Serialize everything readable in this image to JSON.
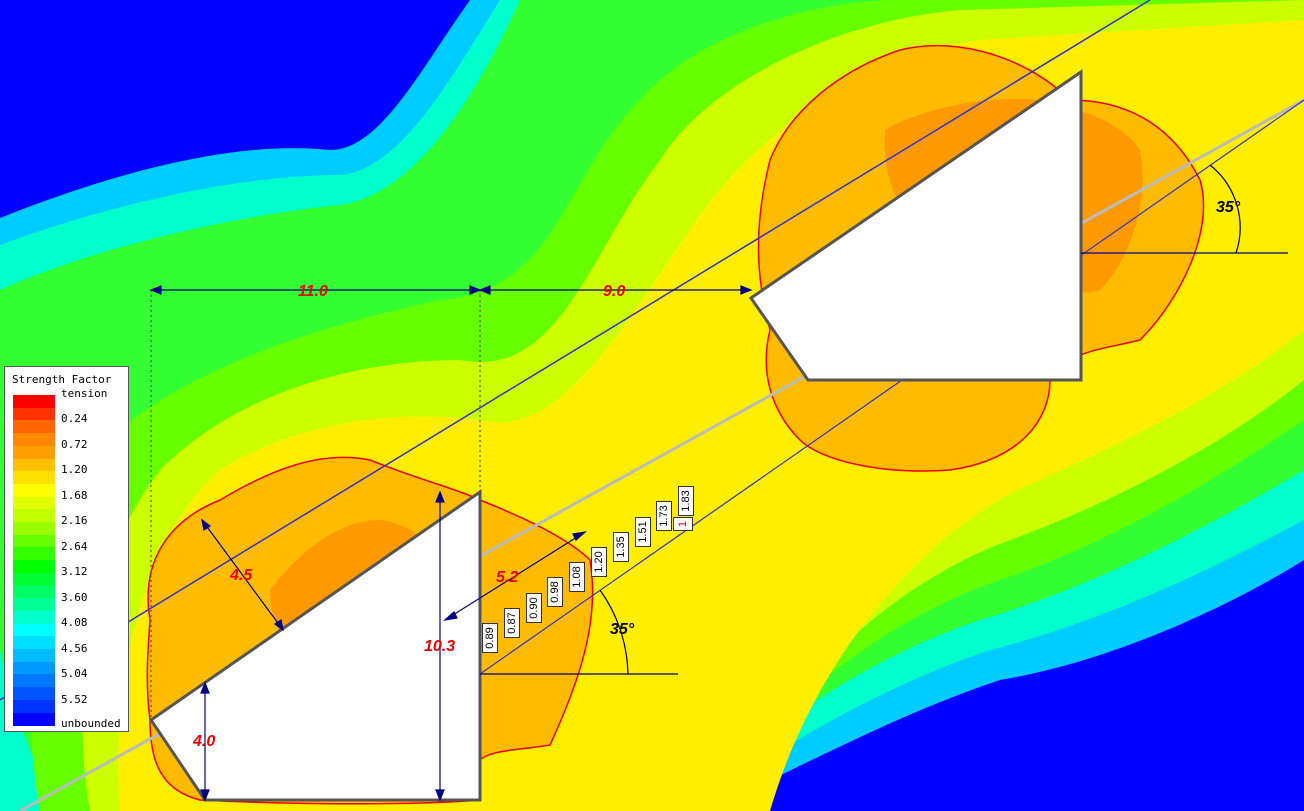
{
  "legend": {
    "title": "Strength Factor",
    "top_label": "tension",
    "bottom_label": "unbounded",
    "tick_labels": [
      "0.24",
      "0.72",
      "1.20",
      "1.68",
      "2.16",
      "2.64",
      "3.12",
      "3.60",
      "4.08",
      "4.56",
      "5.04",
      "5.52"
    ],
    "colors": [
      "#ff0000",
      "#ff3300",
      "#ff6600",
      "#ff8800",
      "#ffa000",
      "#ffc000",
      "#ffe000",
      "#ffff00",
      "#e0ff00",
      "#c0ff00",
      "#99ff00",
      "#66ff00",
      "#33ff00",
      "#00ff00",
      "#00ff33",
      "#00ff66",
      "#00ff99",
      "#00ffcc",
      "#00ffff",
      "#00ddff",
      "#00bbff",
      "#0099ff",
      "#0077ff",
      "#0055ff",
      "#0033ff",
      "#0000ff"
    ]
  },
  "dimensions": {
    "spacing_left": "11.0",
    "spacing_right": "9.0",
    "slope_thickness": "4.5",
    "pillar_height": "10.3",
    "toe_height": "4.0",
    "zone_depth": "5.2",
    "angle_lower": "35°",
    "angle_upper": "35°"
  },
  "bolt_values": [
    "0.89",
    "0.87",
    "0.90",
    "0.98",
    "1.08",
    "1.20",
    "1.35",
    "1.51",
    "1.73",
    "1.83"
  ],
  "bolt_end_label": "1",
  "colors": {
    "dimension_text": "#ee0000",
    "dimension_line": "#000080",
    "boundary": "#ee0000",
    "excavation_fill": "#ffffff",
    "excavation_edge": "#555555",
    "joint_line": "#3333cc",
    "bolt_line": "#bbbbbb"
  }
}
